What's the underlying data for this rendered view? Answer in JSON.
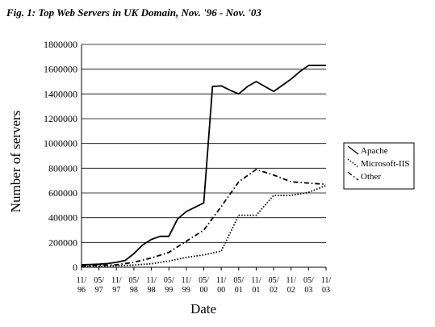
{
  "chart_data": {
    "type": "line",
    "title": "Fig. 1: Top Web Servers in UK Domain, Nov. '96 - Nov. '03",
    "xlabel": "Date",
    "ylabel": "Number of servers",
    "categories": [
      "11/96",
      "05/97",
      "11/97",
      "05/98",
      "11/98",
      "05/99",
      "11/99",
      "05/00",
      "11/00",
      "05/01",
      "11/01",
      "05/02",
      "11/02",
      "05/03",
      "11/03"
    ],
    "tick_labels": [
      [
        "11/",
        "96"
      ],
      [
        "05/",
        "97"
      ],
      [
        "11/",
        "97"
      ],
      [
        "05/",
        "98"
      ],
      [
        "11/",
        "98"
      ],
      [
        "05/",
        "99"
      ],
      [
        "11/",
        "99"
      ],
      [
        "05/",
        "00"
      ],
      [
        "11/",
        "00"
      ],
      [
        "05/",
        "01"
      ],
      [
        "11/",
        "01"
      ],
      [
        "05/",
        "02"
      ],
      [
        "11/",
        "02"
      ],
      [
        "05/",
        "03"
      ],
      [
        "11/",
        "03"
      ]
    ],
    "ylim": [
      0,
      1800000
    ],
    "yticks": [
      0,
      200000,
      400000,
      600000,
      800000,
      1000000,
      1200000,
      1400000,
      1600000,
      1800000
    ],
    "grid": "horizontal",
    "legend_position": "right",
    "series": [
      {
        "name": "Apache",
        "style": "solid",
        "x": [
          0,
          0.5,
          1,
          1.5,
          2,
          2.5,
          3,
          3.5,
          4,
          4.5,
          5,
          5.5,
          6,
          6.5,
          7,
          7.5,
          8,
          8.5,
          9,
          9.5,
          10,
          10.5,
          11,
          11.5,
          12,
          12.5,
          13,
          13.5,
          14
        ],
        "values": [
          20000,
          22000,
          25000,
          30000,
          40000,
          55000,
          110000,
          180000,
          225000,
          250000,
          250000,
          390000,
          450000,
          485000,
          520000,
          1460000,
          1465000,
          1430000,
          1400000,
          1460000,
          1500000,
          1460000,
          1420000,
          1470000,
          1520000,
          1580000,
          1630000,
          1630000,
          1630000
        ]
      },
      {
        "name": "Microsoft-IIS",
        "style": "dotted",
        "x": [
          0,
          1,
          2,
          3,
          4,
          5,
          6,
          7,
          8,
          9,
          10,
          11,
          12,
          13,
          14
        ],
        "values": [
          5000,
          8000,
          12000,
          18000,
          28000,
          50000,
          80000,
          100000,
          130000,
          420000,
          420000,
          580000,
          580000,
          605000,
          660000
        ]
      },
      {
        "name": "Other",
        "style": "dashdot",
        "x": [
          0,
          1,
          2,
          3,
          4,
          5,
          6,
          7,
          8,
          9,
          10,
          11,
          12,
          13,
          14
        ],
        "values": [
          10000,
          15000,
          20000,
          40000,
          75000,
          120000,
          210000,
          300000,
          490000,
          690000,
          790000,
          745000,
          690000,
          680000,
          670000
        ]
      }
    ]
  }
}
